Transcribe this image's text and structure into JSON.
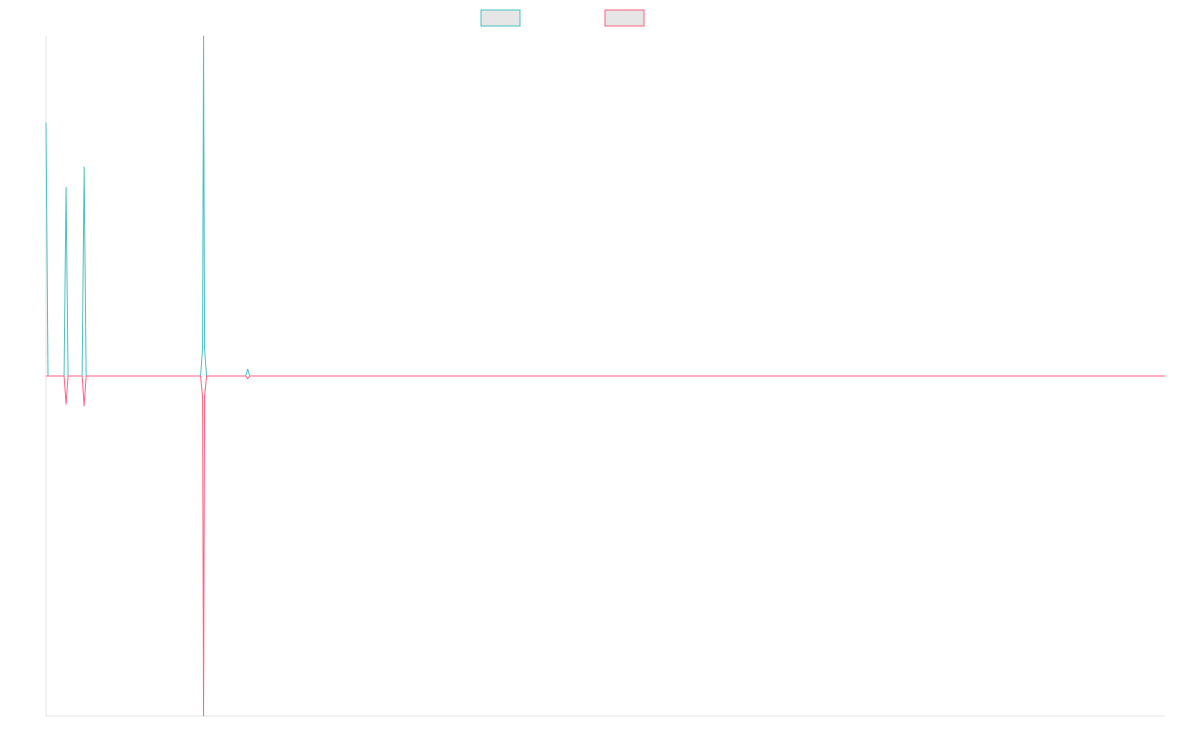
{
  "chart_data": {
    "type": "line",
    "title": "",
    "xlabel": "",
    "ylabel": "",
    "grid": false,
    "legend": "top-center",
    "ylim": [
      -1,
      1
    ],
    "xlim": [
      0,
      223
    ],
    "series": [
      {
        "color": "#4bc0c0",
        "fill": "#e6e6e6",
        "points": [
          [
            0,
            0.745
          ],
          [
            0.4,
            0
          ],
          [
            3.6,
            0
          ],
          [
            4,
            0.555
          ],
          [
            4.4,
            0
          ],
          [
            7.2,
            0
          ],
          [
            7.6,
            0.615
          ],
          [
            8,
            0
          ],
          [
            30.8,
            0
          ],
          [
            31.2,
            0.08
          ],
          [
            31.4,
            1.0
          ],
          [
            31.6,
            0.08
          ],
          [
            32,
            0
          ],
          [
            39.8,
            0
          ],
          [
            40.2,
            0.02
          ],
          [
            40.6,
            0
          ],
          [
            223,
            0
          ]
        ]
      },
      {
        "color": "#ff6384",
        "fill": "#e6e6e6",
        "points": [
          [
            0,
            0
          ],
          [
            3.6,
            0
          ],
          [
            4,
            -0.083
          ],
          [
            4.4,
            0
          ],
          [
            7.2,
            0
          ],
          [
            7.6,
            -0.088
          ],
          [
            8,
            0
          ],
          [
            30.8,
            0
          ],
          [
            31.2,
            -0.06
          ],
          [
            31.4,
            -1.0
          ],
          [
            31.6,
            -0.06
          ],
          [
            32,
            0
          ],
          [
            39.8,
            0
          ],
          [
            40.2,
            -0.008
          ],
          [
            40.6,
            0
          ],
          [
            223,
            0
          ]
        ]
      }
    ]
  }
}
